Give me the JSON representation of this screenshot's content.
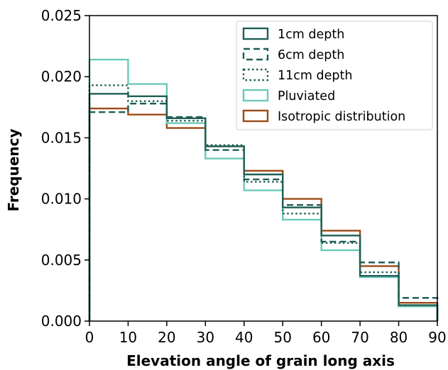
{
  "chart_data": {
    "type": "histogram",
    "xlabel": "Elevation angle of grain long axis",
    "ylabel": "Frequency",
    "xlim": [
      0,
      90
    ],
    "ylim": [
      0,
      0.025
    ],
    "x_ticks": [
      "0",
      "10",
      "20",
      "30",
      "40",
      "50",
      "60",
      "70",
      "80",
      "90"
    ],
    "y_ticks": [
      "0.000",
      "0.005",
      "0.010",
      "0.015",
      "0.020",
      "0.025"
    ],
    "bin_edges": [
      0,
      10,
      20,
      30,
      40,
      50,
      60,
      70,
      80,
      90
    ],
    "grid": false,
    "legend_position": "top-right",
    "series": [
      {
        "name": "1cm depth",
        "color": "#1f5f55",
        "dash": "solid",
        "values": [
          0.0186,
          0.0184,
          0.0166,
          0.0143,
          0.012,
          0.0093,
          0.007,
          0.0037,
          0.0013
        ]
      },
      {
        "name": "6cm depth",
        "color": "#1f5f55",
        "dash": "dashed",
        "values": [
          0.0171,
          0.0178,
          0.0167,
          0.014,
          0.0116,
          0.0095,
          0.0065,
          0.0048,
          0.0019
        ]
      },
      {
        "name": "11cm depth",
        "color": "#1f5f55",
        "dash": "dotted",
        "values": [
          0.0193,
          0.018,
          0.0164,
          0.0144,
          0.0114,
          0.0088,
          0.0064,
          0.004,
          0.0013
        ]
      },
      {
        "name": "Pluviated",
        "color": "#6cc9b8",
        "dash": "solid",
        "values": [
          0.0214,
          0.0194,
          0.0162,
          0.0133,
          0.0107,
          0.0083,
          0.0058,
          0.0036,
          0.0012
        ]
      },
      {
        "name": "Isotropic distribution",
        "color": "#9c4a17",
        "dash": "solid",
        "values": [
          0.0174,
          0.0169,
          0.0158,
          0.0143,
          0.0123,
          0.01,
          0.0074,
          0.0045,
          0.0015
        ]
      }
    ]
  }
}
